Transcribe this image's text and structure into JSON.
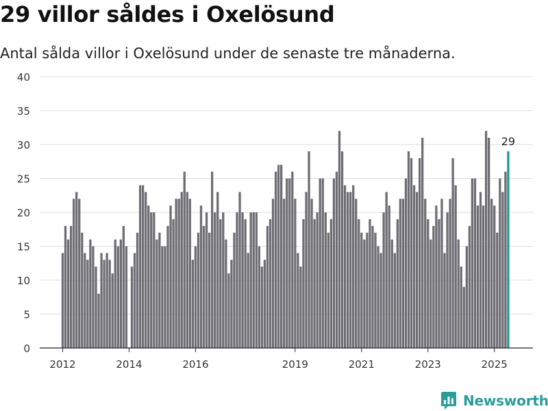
{
  "header": {
    "title": "29 villor såldes i Oxelösund",
    "subtitle": "Antal sålda villor i Oxelösund under de senaste tre månaderna."
  },
  "branding": {
    "name": "Newsworthy",
    "icon": "newsworthy-logo-icon",
    "color": "#2a9d9b"
  },
  "chart_data": {
    "type": "bar",
    "x_start": "2012-01",
    "frequency": "monthly",
    "values": [
      14,
      18,
      16,
      18,
      22,
      23,
      22,
      17,
      14,
      13,
      16,
      15,
      12,
      8,
      14,
      13,
      14,
      13,
      11,
      16,
      15,
      16,
      18,
      15,
      0,
      12,
      14,
      17,
      24,
      24,
      23,
      21,
      20,
      20,
      16,
      17,
      15,
      15,
      18,
      21,
      19,
      22,
      22,
      23,
      26,
      23,
      22,
      13,
      15,
      17,
      21,
      18,
      20,
      17,
      26,
      20,
      23,
      19,
      20,
      16,
      11,
      13,
      17,
      20,
      23,
      20,
      19,
      14,
      20,
      20,
      20,
      15,
      12,
      13,
      18,
      19,
      22,
      26,
      27,
      27,
      22,
      25,
      25,
      26,
      22,
      14,
      12,
      19,
      23,
      29,
      22,
      19,
      20,
      25,
      25,
      20,
      17,
      19,
      25,
      26,
      32,
      29,
      24,
      23,
      23,
      24,
      22,
      19,
      17,
      16,
      17,
      19,
      18,
      17,
      15,
      14,
      20,
      23,
      21,
      16,
      14,
      19,
      22,
      22,
      25,
      29,
      28,
      24,
      23,
      28,
      31,
      22,
      19,
      16,
      18,
      21,
      19,
      22,
      14,
      20,
      22,
      28,
      24,
      16,
      12,
      9,
      15,
      18,
      25,
      25,
      21,
      23,
      21,
      32,
      31,
      22,
      21,
      17,
      25,
      23,
      26,
      29
    ],
    "highlight_label": "29",
    "highlight_color": "#1a9c95",
    "bar_color": "#6e6d74",
    "x_ticks": [
      {
        "label": "2012",
        "x": "2012-01"
      },
      {
        "label": "2014",
        "x": "2014-01"
      },
      {
        "label": "2016",
        "x": "2016-01"
      },
      {
        "label": "2019",
        "x": "2019-01"
      },
      {
        "label": "2021",
        "x": "2021-01"
      },
      {
        "label": "2023",
        "x": "2023-01"
      },
      {
        "label": "2025",
        "x": "2025-01"
      }
    ],
    "y_ticks": [
      0,
      5,
      10,
      15,
      20,
      25,
      30,
      35,
      40
    ],
    "ylim": [
      0,
      40
    ],
    "grid": true,
    "xlabel": "",
    "ylabel": ""
  }
}
